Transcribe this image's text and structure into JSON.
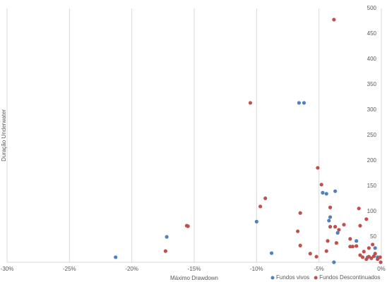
{
  "chart_data": {
    "type": "scatter",
    "x_label": "Máximo Drawdown",
    "y_label": "Duração Underwater",
    "xlim": [
      -30,
      0
    ],
    "ylim": [
      0,
      500
    ],
    "xticks": [
      {
        "value": -30,
        "label": "-30%"
      },
      {
        "value": -25,
        "label": "-25%"
      },
      {
        "value": -20,
        "label": "-20%"
      },
      {
        "value": -15,
        "label": "-15%"
      },
      {
        "value": -10,
        "label": "-10%"
      },
      {
        "value": -5,
        "label": "-5%"
      },
      {
        "value": 0,
        "label": "0%"
      }
    ],
    "yticks": [
      50,
      100,
      150,
      200,
      250,
      300,
      350,
      400,
      450,
      500
    ],
    "grid": "x",
    "legend": "bottom-right",
    "series": [
      {
        "name": "Fundos vivos",
        "color": "#4f81bd",
        "x": [
          -21.3,
          -17.2,
          -10.0,
          -8.8,
          -6.6,
          -6.2,
          -4.7,
          -4.4,
          -3.7,
          -4.2,
          -4.1,
          -3.8,
          -3.5,
          -2.0,
          -0.5,
          -1.1,
          -0.3
        ],
        "values": [
          10,
          50,
          80,
          18,
          314,
          314,
          137,
          135,
          140,
          82,
          89,
          0,
          58,
          42,
          28,
          10,
          10
        ]
      },
      {
        "name": "Fundos Descontinuados",
        "color": "#c0504d",
        "x": [
          -3.8,
          -10.5,
          -5.1,
          -4.8,
          -9.3,
          -9.7,
          -15.6,
          -15.5,
          -17.3,
          -6.5,
          -4.1,
          -4.1,
          -3.7,
          -3.4,
          -3.0,
          -1.8,
          -1.7,
          -1.2,
          -6.7,
          -6.5,
          -4.3,
          -4.4,
          -5.7,
          -5.2,
          -3.6,
          -2.5,
          -2.5,
          -2.3,
          -2.0,
          -1.7,
          -1.4,
          -1.0,
          -0.7,
          -0.5,
          -0.3,
          -0.1,
          -0.05,
          -0.8,
          -1.2,
          -1.0,
          -0.6,
          -1.5
        ],
        "values": [
          478,
          314,
          186,
          153,
          126,
          110,
          72,
          71,
          22,
          97,
          108,
          70,
          70,
          64,
          74,
          106,
          72,
          85,
          61,
          33,
          42,
          22,
          17,
          11,
          38,
          46,
          31,
          31,
          32,
          14,
          21,
          28,
          35,
          17,
          6,
          10,
          0,
          8,
          6,
          11,
          12,
          10
        ]
      }
    ]
  }
}
